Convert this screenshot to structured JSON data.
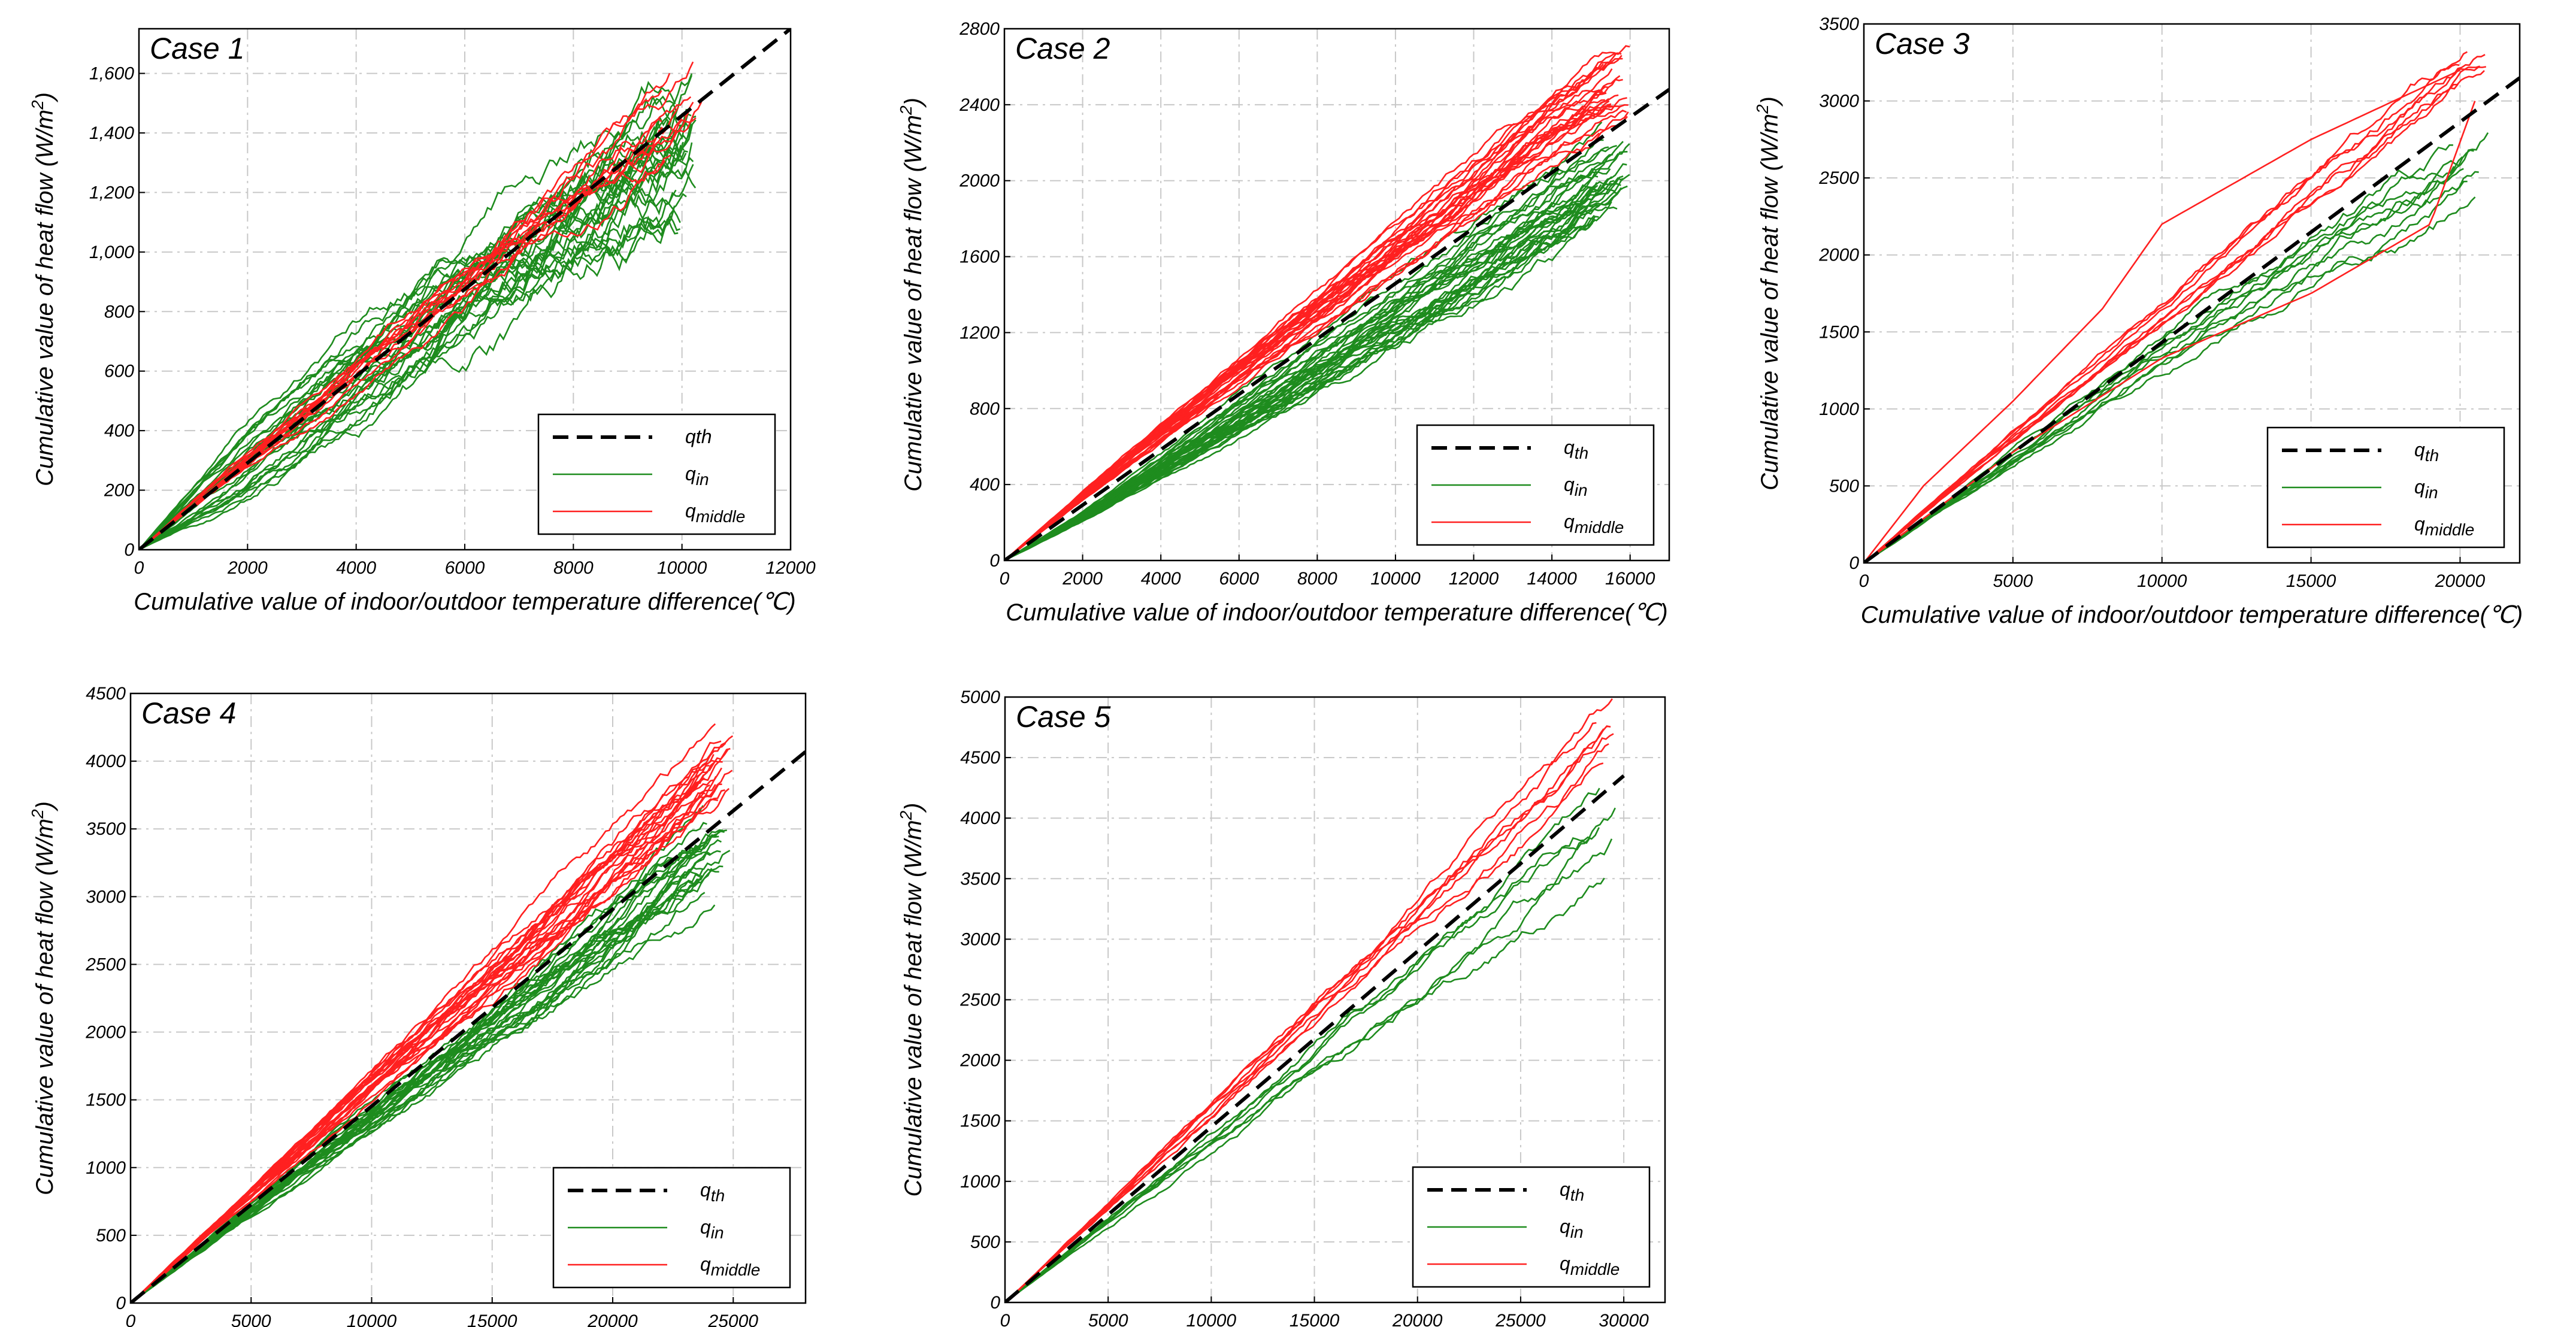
{
  "figure": {
    "description": "Five panels comparing cumulative heat flow against cumulative indoor/outdoor temperature difference"
  },
  "chart_data": [
    {
      "type": "line",
      "title": "Case 1",
      "xlabel": "Cumulative value of indoor/outdoor temperature difference(℃)",
      "ylabel": "Cumulative value of heat flow (W/m²)",
      "ylabel_parts": [
        "Cumulative value of heat flow (W/m",
        "2",
        ")"
      ],
      "xlim": [
        0,
        12000
      ],
      "ylim": [
        0,
        1750
      ],
      "xticks": [
        0,
        2000,
        4000,
        6000,
        8000,
        10000,
        12000
      ],
      "xtick_labels": [
        "0",
        "2000",
        "4000",
        "6000",
        "8000",
        "10000",
        "12000"
      ],
      "yticks": [
        0,
        200,
        400,
        600,
        800,
        1000,
        1200,
        1400,
        1600
      ],
      "ytick_labels": [
        "0",
        "200",
        "400",
        "600",
        "800",
        "1,000",
        "1,200",
        "1,400",
        "1,600"
      ],
      "legend": {
        "position": "lower-right",
        "entries": [
          {
            "key": "q_th",
            "label": "qth",
            "sub": ""
          },
          {
            "key": "q_in",
            "label": "q",
            "sub": "in"
          },
          {
            "key": "q_middle",
            "label": "q",
            "sub": "middle"
          }
        ]
      },
      "series": [
        {
          "name": "q_th",
          "style": "dashed",
          "color": "#000000",
          "x": [
            0,
            12000
          ],
          "y": [
            0,
            1750
          ]
        },
        {
          "name": "q_in (envelope upper)",
          "style": "solid",
          "color": "#1e8c1e",
          "x": [
            0,
            2000,
            4000,
            6000,
            8000,
            10000,
            10300
          ],
          "y": [
            0,
            430,
            760,
            990,
            1250,
            1550,
            1650
          ]
        },
        {
          "name": "q_in (envelope lower)",
          "style": "solid",
          "color": "#1e8c1e",
          "x": [
            0,
            2000,
            4000,
            6000,
            8000,
            10000,
            10500
          ],
          "y": [
            0,
            160,
            420,
            700,
            950,
            1150,
            1260
          ]
        },
        {
          "name": "q_middle",
          "style": "solid",
          "color": "#ff2020",
          "x": [
            0,
            2000,
            4000,
            6000,
            8000,
            10000,
            10400
          ],
          "y": [
            0,
            300,
            590,
            880,
            1170,
            1440,
            1500
          ]
        }
      ]
    },
    {
      "type": "line",
      "title": "Case 2",
      "xlabel": "Cumulative value of indoor/outdoor temperature difference(℃)",
      "ylabel": "Cumulative value of heat flow (W/m²)",
      "ylabel_parts": [
        "Cumulative value of heat flow (W/m",
        "2",
        ")"
      ],
      "xlim": [
        0,
        17000
      ],
      "ylim": [
        0,
        2800
      ],
      "xticks": [
        0,
        2000,
        4000,
        6000,
        8000,
        10000,
        12000,
        14000,
        16000
      ],
      "xtick_labels": [
        "0",
        "2000",
        "4000",
        "6000",
        "8000",
        "10000",
        "12000",
        "14000",
        "16000"
      ],
      "yticks": [
        0,
        400,
        800,
        1200,
        1600,
        2000,
        2400,
        2800
      ],
      "ytick_labels": [
        "0",
        "400",
        "800",
        "1200",
        "1600",
        "2000",
        "2400",
        "2800"
      ],
      "legend": {
        "position": "lower-right",
        "entries": [
          {
            "key": "q_th",
            "label": "q",
            "sub": "th"
          },
          {
            "key": "q_in",
            "label": "q",
            "sub": "in"
          },
          {
            "key": "q_middle",
            "label": "q",
            "sub": "middle"
          }
        ]
      },
      "series": [
        {
          "name": "q_th",
          "style": "dashed",
          "color": "#000000",
          "x": [
            0,
            17000
          ],
          "y": [
            0,
            2480
          ]
        },
        {
          "name": "q_in",
          "style": "solid",
          "color": "#1e8c1e",
          "x": [
            0,
            2000,
            4000,
            6000,
            8000,
            10000,
            12000,
            14000,
            16000
          ],
          "y": [
            0,
            230,
            490,
            750,
            1020,
            1290,
            1560,
            1830,
            2100
          ]
        },
        {
          "name": "q_middle",
          "style": "solid",
          "color": "#ff2020",
          "x": [
            0,
            2000,
            4000,
            6000,
            8000,
            10000,
            12000,
            14000,
            16000
          ],
          "y": [
            0,
            340,
            670,
            990,
            1310,
            1630,
            1950,
            2270,
            2520
          ]
        }
      ]
    },
    {
      "type": "line",
      "title": "Case 3",
      "xlabel": "Cumulative value of indoor/outdoor temperature difference(℃)",
      "ylabel": "Cumulative value of heat flow (W/m²)",
      "ylabel_parts": [
        "Cumulative value of heat flow (W/m",
        "2",
        ")"
      ],
      "xlim": [
        0,
        22000
      ],
      "ylim": [
        0,
        3500
      ],
      "xticks": [
        0,
        5000,
        10000,
        15000,
        20000
      ],
      "xtick_labels": [
        "0",
        "5000",
        "10000",
        "15000",
        "20000"
      ],
      "yticks": [
        0,
        500,
        1000,
        1500,
        2000,
        2500,
        3000,
        3500
      ],
      "ytick_labels": [
        "0",
        "500",
        "1000",
        "1500",
        "2000",
        "2500",
        "3000",
        "3500"
      ],
      "legend": {
        "position": "lower-right",
        "entries": [
          {
            "key": "q_th",
            "label": "q",
            "sub": "th"
          },
          {
            "key": "q_in",
            "label": "q",
            "sub": "in"
          },
          {
            "key": "q_middle",
            "label": "q",
            "sub": "middle"
          }
        ]
      },
      "series": [
        {
          "name": "q_th",
          "style": "dashed",
          "color": "#000000",
          "x": [
            0,
            22000
          ],
          "y": [
            0,
            3150
          ]
        },
        {
          "name": "q_in",
          "style": "solid",
          "color": "#1e8c1e",
          "x": [
            0,
            5000,
            10000,
            15000,
            20000,
            21000
          ],
          "y": [
            0,
            680,
            1400,
            2050,
            2600,
            2800
          ]
        },
        {
          "name": "q_middle",
          "style": "solid",
          "color": "#ff2020",
          "x": [
            0,
            5000,
            10000,
            15000,
            20000,
            21000
          ],
          "y": [
            0,
            810,
            1600,
            2400,
            3150,
            3300
          ]
        },
        {
          "name": "q_middle (outlier)",
          "style": "solid",
          "color": "#ff2020",
          "x": [
            0,
            2000,
            5000,
            8000,
            10000,
            15000,
            20000
          ],
          "y": [
            0,
            500,
            1050,
            1650,
            2200,
            2750,
            3200
          ]
        }
      ]
    },
    {
      "type": "line",
      "title": "Case 4",
      "xlabel": "Cumulative value of indoor/outdoor temperature difference(℃)",
      "ylabel": "Cumulative value of heat flow (W/m²)",
      "ylabel_parts": [
        "Cumulative value of heat flow (W/m",
        "2",
        ")"
      ],
      "xlim": [
        0,
        28000
      ],
      "ylim": [
        0,
        4500
      ],
      "xticks": [
        0,
        5000,
        10000,
        15000,
        20000,
        25000
      ],
      "xtick_labels": [
        "0",
        "5000",
        "10000",
        "15000",
        "20000",
        "25000"
      ],
      "yticks": [
        0,
        500,
        1000,
        1500,
        2000,
        2500,
        3000,
        3500,
        4000,
        4500
      ],
      "ytick_labels": [
        "0",
        "500",
        "1000",
        "1500",
        "2000",
        "2500",
        "3000",
        "3500",
        "4000",
        "4500"
      ],
      "legend": {
        "position": "lower-right",
        "entries": [
          {
            "key": "q_th",
            "label": "q",
            "sub": "th"
          },
          {
            "key": "q_in",
            "label": "q",
            "sub": "in"
          },
          {
            "key": "q_middle",
            "label": "q",
            "sub": "middle"
          }
        ]
      },
      "series": [
        {
          "name": "q_th",
          "style": "dashed",
          "color": "#000000",
          "x": [
            0,
            28000
          ],
          "y": [
            0,
            4070
          ]
        },
        {
          "name": "q_in",
          "style": "solid",
          "color": "#1e8c1e",
          "x": [
            0,
            5000,
            10000,
            15000,
            20000,
            25000
          ],
          "y": [
            0,
            690,
            1380,
            2060,
            2750,
            3450
          ]
        },
        {
          "name": "q_middle",
          "style": "solid",
          "color": "#ff2020",
          "x": [
            0,
            5000,
            10000,
            15000,
            20000,
            25000
          ],
          "y": [
            0,
            810,
            1620,
            2420,
            3230,
            4050
          ]
        }
      ]
    },
    {
      "type": "line",
      "title": "Case 5",
      "xlabel": "Cumulative value of indoor/outdoor temperature difference(℃)",
      "ylabel": "Cumulative value of heat flow (W/m²)",
      "ylabel_parts": [
        "Cumulative value of heat flow (W/m",
        "2",
        ")"
      ],
      "xlim": [
        0,
        32000
      ],
      "ylim": [
        0,
        5000
      ],
      "xticks": [
        0,
        5000,
        10000,
        15000,
        20000,
        25000,
        30000
      ],
      "xtick_labels": [
        "0",
        "5000",
        "10000",
        "15000",
        "20000",
        "25000",
        "30000"
      ],
      "yticks": [
        0,
        500,
        1000,
        1500,
        2000,
        2500,
        3000,
        3500,
        4000,
        4500,
        5000
      ],
      "ytick_labels": [
        "0",
        "500",
        "1000",
        "1500",
        "2000",
        "2500",
        "3000",
        "3500",
        "4000",
        "4500",
        "5000"
      ],
      "legend": {
        "position": "lower-right",
        "entries": [
          {
            "key": "q_th",
            "label": "q",
            "sub": "th"
          },
          {
            "key": "q_in",
            "label": "q",
            "sub": "in"
          },
          {
            "key": "q_middle",
            "label": "q",
            "sub": "middle"
          }
        ]
      },
      "series": [
        {
          "name": "q_th",
          "style": "dashed",
          "color": "#000000",
          "x": [
            0,
            30000
          ],
          "y": [
            0,
            4350
          ]
        },
        {
          "name": "q_in",
          "style": "solid",
          "color": "#1e8c1e",
          "x": [
            0,
            5000,
            10000,
            15000,
            20000,
            25000,
            30000
          ],
          "y": [
            0,
            670,
            1340,
            2010,
            2680,
            3350,
            4020
          ]
        },
        {
          "name": "q_middle",
          "style": "solid",
          "color": "#ff2020",
          "x": [
            0,
            5000,
            10000,
            15000,
            20000,
            25000,
            30000
          ],
          "y": [
            0,
            790,
            1580,
            2370,
            3160,
            3950,
            4750
          ]
        }
      ]
    }
  ],
  "colors": {
    "q_th": "#000000",
    "q_in": "#1e8c1e",
    "q_middle": "#ff2020",
    "grid": "#c8c8c8"
  }
}
